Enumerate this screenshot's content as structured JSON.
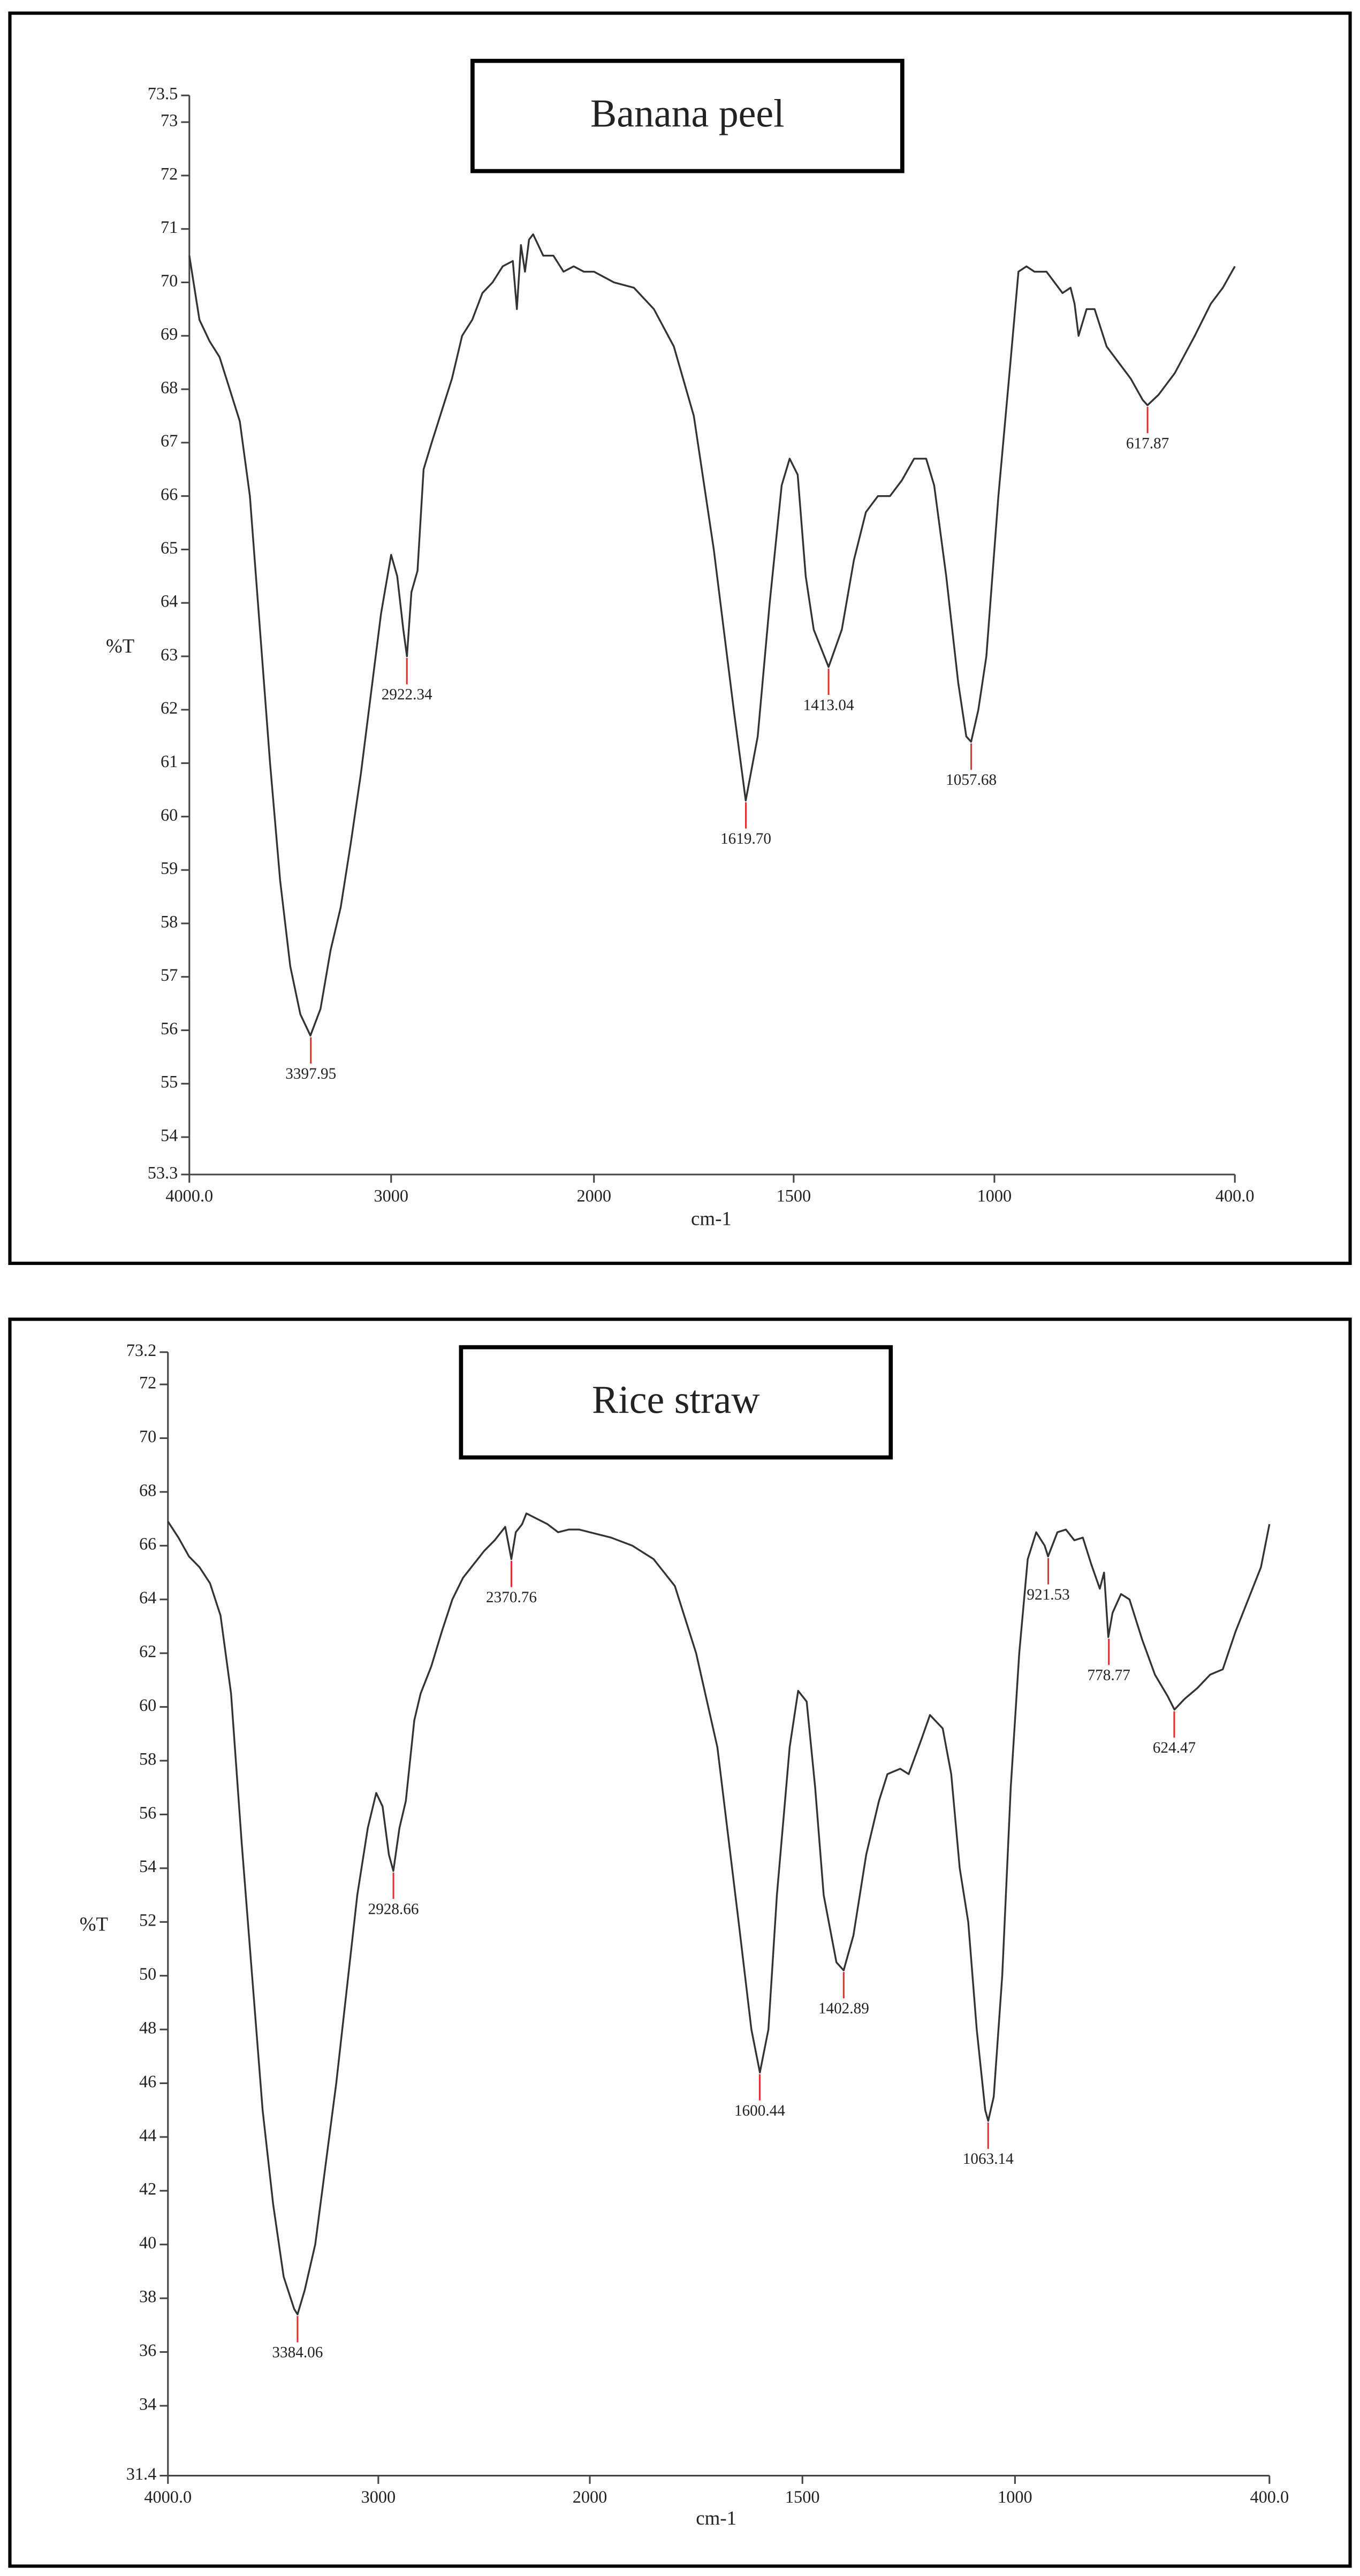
{
  "chart_data": [
    {
      "type": "line",
      "title": "Banana peel",
      "x_label": "cm-1",
      "y_label": "%T",
      "xlim": [
        4000,
        400
      ],
      "ylim": [
        53.3,
        73.5
      ],
      "xticks": [
        {
          "value": 4000,
          "label": "4000.0"
        },
        3000,
        2000,
        1500,
        1000,
        {
          "value": 400,
          "label": "400.0"
        }
      ],
      "yticks": [
        53.3,
        54,
        55,
        56,
        57,
        58,
        59,
        60,
        61,
        62,
        63,
        64,
        65,
        66,
        67,
        68,
        69,
        70,
        71,
        72,
        73,
        73.5
      ],
      "color": "#333333",
      "annotation_color": "#e03030",
      "x": [
        4000,
        3950,
        3900,
        3850,
        3800,
        3750,
        3700,
        3650,
        3600,
        3550,
        3500,
        3450,
        3400,
        3350,
        3300,
        3250,
        3200,
        3150,
        3100,
        3050,
        3000,
        2970,
        2940,
        2922,
        2900,
        2870,
        2840,
        2800,
        2750,
        2700,
        2650,
        2600,
        2550,
        2500,
        2450,
        2400,
        2380,
        2360,
        2340,
        2320,
        2300,
        2250,
        2200,
        2150,
        2100,
        2050,
        2000,
        1950,
        1900,
        1850,
        1800,
        1750,
        1700,
        1650,
        1620,
        1590,
        1560,
        1530,
        1510,
        1490,
        1470,
        1450,
        1413,
        1380,
        1350,
        1320,
        1290,
        1260,
        1230,
        1200,
        1170,
        1150,
        1120,
        1090,
        1070,
        1058,
        1040,
        1020,
        990,
        960,
        940,
        920,
        900,
        870,
        850,
        830,
        810,
        800,
        790,
        770,
        750,
        720,
        690,
        660,
        630,
        618,
        590,
        550,
        500,
        460,
        430,
        400
      ],
      "values": [
        70.5,
        69.3,
        68.9,
        68.6,
        68.0,
        67.4,
        66.0,
        63.5,
        61.0,
        58.8,
        57.2,
        56.3,
        55.9,
        56.4,
        57.5,
        58.3,
        59.5,
        60.8,
        62.3,
        63.8,
        64.9,
        64.5,
        63.5,
        63.0,
        64.2,
        64.6,
        66.5,
        67.0,
        67.6,
        68.2,
        69.0,
        69.3,
        69.8,
        70.0,
        70.3,
        70.4,
        69.5,
        70.7,
        70.2,
        70.8,
        70.9,
        70.5,
        70.5,
        70.2,
        70.3,
        70.2,
        70.2,
        70.0,
        69.9,
        69.5,
        68.8,
        67.5,
        65.0,
        62.0,
        60.3,
        61.5,
        64.0,
        66.2,
        66.7,
        66.4,
        64.5,
        63.5,
        62.8,
        63.5,
        64.8,
        65.7,
        66.0,
        66.0,
        66.3,
        66.7,
        66.7,
        66.2,
        64.5,
        62.5,
        61.5,
        61.4,
        62.0,
        63.0,
        66.0,
        68.5,
        70.2,
        70.3,
        70.2,
        70.2,
        70.0,
        69.8,
        69.9,
        69.6,
        69.0,
        69.5,
        69.5,
        68.8,
        68.5,
        68.2,
        67.8,
        67.7,
        67.9,
        68.3,
        69.0,
        69.6,
        69.9,
        70.3
      ],
      "annotations": [
        {
          "label": "3397.95",
          "x": 3397.95,
          "y": 55.9
        },
        {
          "label": "2922.34",
          "x": 2922.34,
          "y": 63.0
        },
        {
          "label": "1619.70",
          "x": 1619.7,
          "y": 60.3
        },
        {
          "label": "1413.04",
          "x": 1413.04,
          "y": 62.8
        },
        {
          "label": "1057.68",
          "x": 1057.68,
          "y": 61.4
        },
        {
          "label": "617.87",
          "x": 617.87,
          "y": 67.7
        }
      ]
    },
    {
      "type": "line",
      "title": "Rice straw",
      "x_label": "cm-1",
      "y_label": "%T",
      "xlim": [
        4000,
        400
      ],
      "ylim": [
        31.4,
        73.2
      ],
      "xticks": [
        {
          "value": 4000,
          "label": "4000.0"
        },
        3000,
        2000,
        1500,
        1000,
        {
          "value": 400,
          "label": "400.0"
        }
      ],
      "yticks": [
        31.4,
        34,
        36,
        38,
        40,
        42,
        44,
        46,
        48,
        50,
        52,
        54,
        56,
        58,
        60,
        62,
        64,
        66,
        68,
        70,
        72,
        73.2
      ],
      "color": "#333333",
      "annotation_color": "#e03030",
      "x": [
        4000,
        3950,
        3900,
        3850,
        3800,
        3750,
        3700,
        3650,
        3600,
        3550,
        3500,
        3450,
        3400,
        3384,
        3350,
        3300,
        3250,
        3200,
        3150,
        3100,
        3050,
        3010,
        2980,
        2950,
        2929,
        2900,
        2870,
        2830,
        2800,
        2750,
        2700,
        2650,
        2600,
        2550,
        2500,
        2450,
        2400,
        2371,
        2350,
        2320,
        2300,
        2250,
        2200,
        2150,
        2100,
        2050,
        2000,
        1950,
        1900,
        1850,
        1800,
        1750,
        1700,
        1650,
        1620,
        1600,
        1580,
        1560,
        1530,
        1510,
        1490,
        1470,
        1450,
        1420,
        1403,
        1380,
        1350,
        1320,
        1300,
        1270,
        1250,
        1220,
        1200,
        1170,
        1150,
        1130,
        1110,
        1090,
        1070,
        1063,
        1050,
        1030,
        1010,
        990,
        970,
        950,
        930,
        922,
        900,
        880,
        860,
        840,
        820,
        800,
        790,
        780,
        770,
        750,
        730,
        700,
        670,
        640,
        624,
        600,
        570,
        540,
        510,
        480,
        450,
        420,
        400
      ],
      "values": [
        66.9,
        66.3,
        65.6,
        65.2,
        64.6,
        63.4,
        60.5,
        55.0,
        50.0,
        45.0,
        41.5,
        38.8,
        37.6,
        37.4,
        38.3,
        40.0,
        43.0,
        46.0,
        49.5,
        53.0,
        55.5,
        56.8,
        56.3,
        54.5,
        53.9,
        55.5,
        56.5,
        59.5,
        60.5,
        61.5,
        62.8,
        64.0,
        64.8,
        65.3,
        65.8,
        66.2,
        66.7,
        65.5,
        66.5,
        66.8,
        67.2,
        67.0,
        66.8,
        66.5,
        66.6,
        66.6,
        66.5,
        66.3,
        66.0,
        65.5,
        64.5,
        62.0,
        58.5,
        52.0,
        48.0,
        46.4,
        48.0,
        53.0,
        58.5,
        60.6,
        60.2,
        57.0,
        53.0,
        50.5,
        50.2,
        51.5,
        54.5,
        56.5,
        57.5,
        57.7,
        57.5,
        58.8,
        59.7,
        59.2,
        57.5,
        54.0,
        52.0,
        48.0,
        45.0,
        44.6,
        45.5,
        50.0,
        57.0,
        62.0,
        65.5,
        66.5,
        66.0,
        65.6,
        66.5,
        66.6,
        66.2,
        66.3,
        65.3,
        64.4,
        65.0,
        62.6,
        63.5,
        64.2,
        64.0,
        62.5,
        61.2,
        60.4,
        59.9,
        60.3,
        60.7,
        61.2,
        61.4,
        62.8,
        64.0,
        65.2,
        66.8
      ],
      "annotations": [
        {
          "label": "3384.06",
          "x": 3384.06,
          "y": 37.4
        },
        {
          "label": "2928.66",
          "x": 2928.66,
          "y": 53.9
        },
        {
          "label": "2370.76",
          "x": 2370.76,
          "y": 65.5
        },
        {
          "label": "1600.44",
          "x": 1600.44,
          "y": 46.4
        },
        {
          "label": "1402.89",
          "x": 1402.89,
          "y": 50.2
        },
        {
          "label": "1063.14",
          "x": 1063.14,
          "y": 44.6
        },
        {
          "label": "921.53",
          "x": 921.53,
          "y": 65.6
        },
        {
          "label": "778.77",
          "x": 778.77,
          "y": 62.6
        },
        {
          "label": "624.47",
          "x": 624.47,
          "y": 59.9
        }
      ]
    }
  ]
}
